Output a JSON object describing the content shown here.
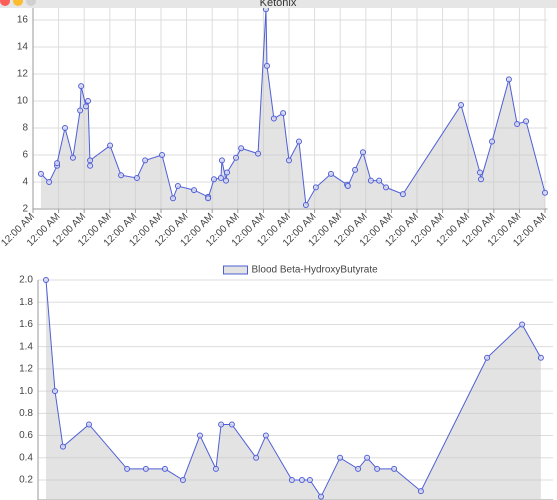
{
  "window": {
    "title": "Ketonix"
  },
  "chart_data": [
    {
      "type": "line",
      "area": true,
      "grid": true,
      "x": [
        0.31,
        0.63,
        0.94,
        0.94,
        1.25,
        1.56,
        1.84,
        1.88,
        2.07,
        2.15,
        2.23,
        2.23,
        3.01,
        3.44,
        4.06,
        4.38,
        5.04,
        5.47,
        5.66,
        6.29,
        6.84,
        6.84,
        7.07,
        7.34,
        7.38,
        7.54,
        7.58,
        7.93,
        8.13,
        8.79,
        9.1,
        9.14,
        9.41,
        9.77,
        10.0,
        10.39,
        10.66,
        11.05,
        11.64,
        12.27,
        12.3,
        12.58,
        12.89,
        13.2,
        13.52,
        13.79,
        14.45,
        16.72,
        17.46,
        17.5,
        17.93,
        18.59,
        18.91,
        19.26,
        20.0
      ],
      "series": [
        {
          "color": "#4f5fd6",
          "values": [
            4.6,
            4.0,
            5.2,
            5.4,
            8.0,
            5.8,
            9.3,
            11.1,
            9.6,
            10.0,
            5.2,
            5.6,
            6.7,
            4.5,
            4.3,
            5.6,
            6.0,
            2.8,
            3.7,
            3.4,
            2.9,
            2.8,
            4.2,
            4.3,
            5.6,
            4.1,
            4.7,
            5.8,
            6.5,
            6.1,
            16.8,
            12.6,
            8.7,
            9.1,
            5.6,
            7.0,
            2.3,
            3.6,
            4.6,
            3.8,
            3.7,
            4.9,
            6.2,
            4.1,
            4.1,
            3.6,
            3.1,
            9.7,
            4.7,
            4.2,
            7.0,
            11.6,
            8.3,
            8.5,
            3.2
          ]
        }
      ],
      "xlim": [
        0,
        20.1
      ],
      "ylim": [
        2,
        17
      ],
      "yticks": [
        2,
        4,
        6,
        8,
        10,
        12,
        14,
        16
      ],
      "xticks": [
        {
          "value": 0,
          "label": "12:00 AM"
        },
        {
          "value": 1,
          "label": "12:00 AM"
        },
        {
          "value": 2,
          "label": "12:00 AM"
        },
        {
          "value": 3,
          "label": "12:00 AM"
        },
        {
          "value": 4,
          "label": "12:00 AM"
        },
        {
          "value": 5,
          "label": "12:00 AM"
        },
        {
          "value": 6,
          "label": "12:00 AM"
        },
        {
          "value": 7,
          "label": "12:00 AM"
        },
        {
          "value": 8,
          "label": "12:00 AM"
        },
        {
          "value": 9,
          "label": "12:00 AM"
        },
        {
          "value": 10,
          "label": "12:00 AM"
        },
        {
          "value": 11,
          "label": "12:00 AM"
        },
        {
          "value": 12,
          "label": "12:00 AM"
        },
        {
          "value": 13,
          "label": "12:00 AM"
        },
        {
          "value": 14,
          "label": "12:00 AM"
        },
        {
          "value": 15,
          "label": "12:00 AM"
        },
        {
          "value": 16,
          "label": "12:00 AM"
        },
        {
          "value": 17,
          "label": "12:00 AM"
        },
        {
          "value": 18,
          "label": "12:00 AM"
        },
        {
          "value": 19,
          "label": "12:00 AM"
        },
        {
          "value": 20,
          "label": "12:00 AM"
        }
      ]
    },
    {
      "type": "line",
      "area": true,
      "grid": true,
      "legend": "top",
      "x": [
        0.31,
        0.66,
        0.97,
        1.98,
        3.46,
        4.19,
        4.93,
        5.63,
        6.29,
        6.91,
        7.11,
        7.53,
        8.47,
        8.85,
        9.86,
        10.25,
        10.56,
        10.99,
        11.73,
        12.43,
        12.78,
        13.17,
        13.83,
        14.87,
        17.44,
        18.8,
        19.53
      ],
      "series": [
        {
          "name": "Blood Beta-HydroxyButyrate",
          "color": "#4f5fd6",
          "values": [
            2.0,
            1.0,
            0.5,
            0.7,
            0.3,
            0.3,
            0.3,
            0.2,
            0.6,
            0.3,
            0.7,
            0.7,
            0.4,
            0.6,
            0.2,
            0.2,
            0.2,
            0.05,
            0.4,
            0.3,
            0.4,
            0.3,
            0.3,
            0.1,
            1.3,
            1.6,
            1.3
          ]
        }
      ],
      "xlim": [
        0,
        20
      ],
      "ylim": [
        0.02,
        2.0
      ],
      "yticks": [
        0.2,
        0.4,
        0.6,
        0.8,
        {
          "value": 1,
          "label": "1.0"
        },
        1.2,
        1.4,
        1.6,
        1.8,
        {
          "value": 2,
          "label": "2.0"
        }
      ]
    }
  ]
}
